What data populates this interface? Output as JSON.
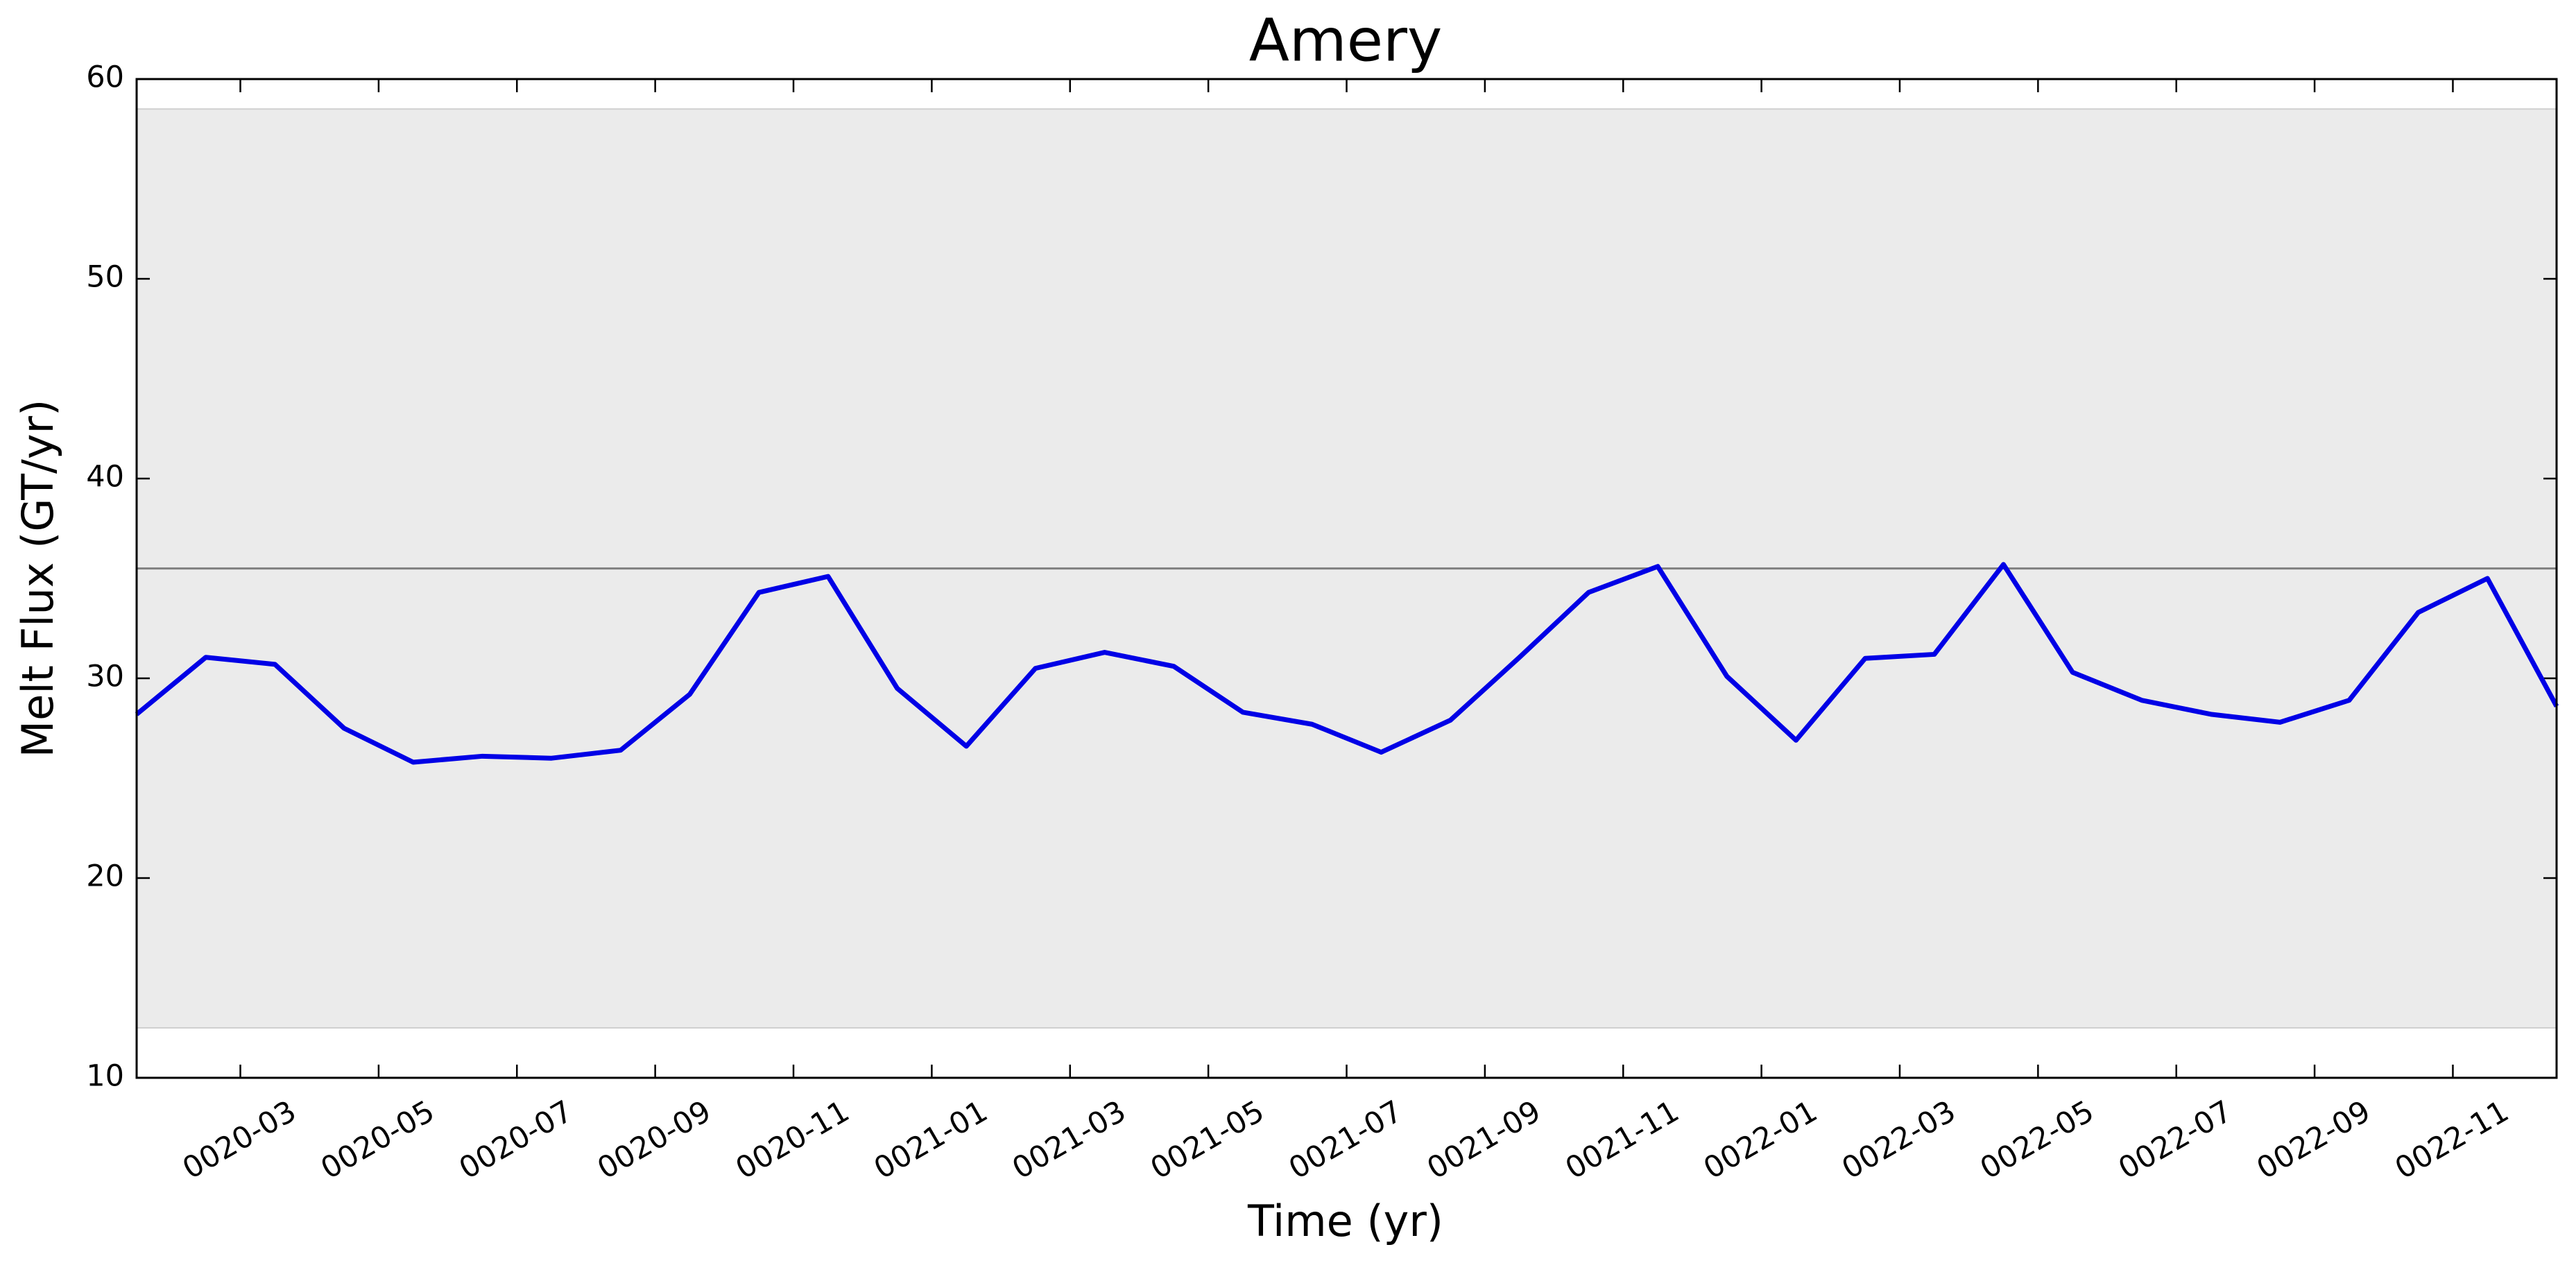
{
  "chart_data": {
    "type": "line",
    "title": "Amery",
    "xlabel": "Time (yr)",
    "ylabel": "Melt Flux (GT/yr)",
    "x": [
      "0020-01",
      "0020-02",
      "0020-03",
      "0020-04",
      "0020-05",
      "0020-06",
      "0020-07",
      "0020-08",
      "0020-09",
      "0020-10",
      "0020-11",
      "0020-12",
      "0021-01",
      "0021-02",
      "0021-03",
      "0021-04",
      "0021-05",
      "0021-06",
      "0021-07",
      "0021-08",
      "0021-09",
      "0021-10",
      "0021-11",
      "0021-12",
      "0022-01",
      "0022-02",
      "0022-03",
      "0022-04",
      "0022-05",
      "0022-06",
      "0022-07",
      "0022-08",
      "0022-09",
      "0022-10",
      "0022-11",
      "0022-12"
    ],
    "series": [
      {
        "name": "Amery",
        "color": "#0000e6",
        "values": [
          28.2,
          31.05,
          30.7,
          27.5,
          25.8,
          26.1,
          26.0,
          26.4,
          29.2,
          34.3,
          35.1,
          29.5,
          26.6,
          30.5,
          31.3,
          30.6,
          28.3,
          27.7,
          26.3,
          27.9,
          31.05,
          34.3,
          35.6,
          30.1,
          26.9,
          31.0,
          31.2,
          35.7,
          30.3,
          28.9,
          28.2,
          27.8,
          28.9,
          33.3,
          35.0,
          28.6
        ]
      }
    ],
    "mean": 35.5,
    "band": [
      12.5,
      58.5
    ],
    "band_color": "#ebebeb",
    "mean_color": "#808080",
    "xlim": [
      "0020-01",
      "0022-12"
    ],
    "xticks": [
      "0020-03",
      "0020-05",
      "0020-07",
      "0020-09",
      "0020-11",
      "0021-01",
      "0021-03",
      "0021-05",
      "0021-07",
      "0021-09",
      "0021-11",
      "0022-01",
      "0022-03",
      "0022-05",
      "0022-07",
      "0022-09",
      "0022-11"
    ],
    "ylim": [
      10,
      60
    ],
    "yticks": [
      10,
      20,
      30,
      40,
      50,
      60
    ],
    "grid": false
  }
}
